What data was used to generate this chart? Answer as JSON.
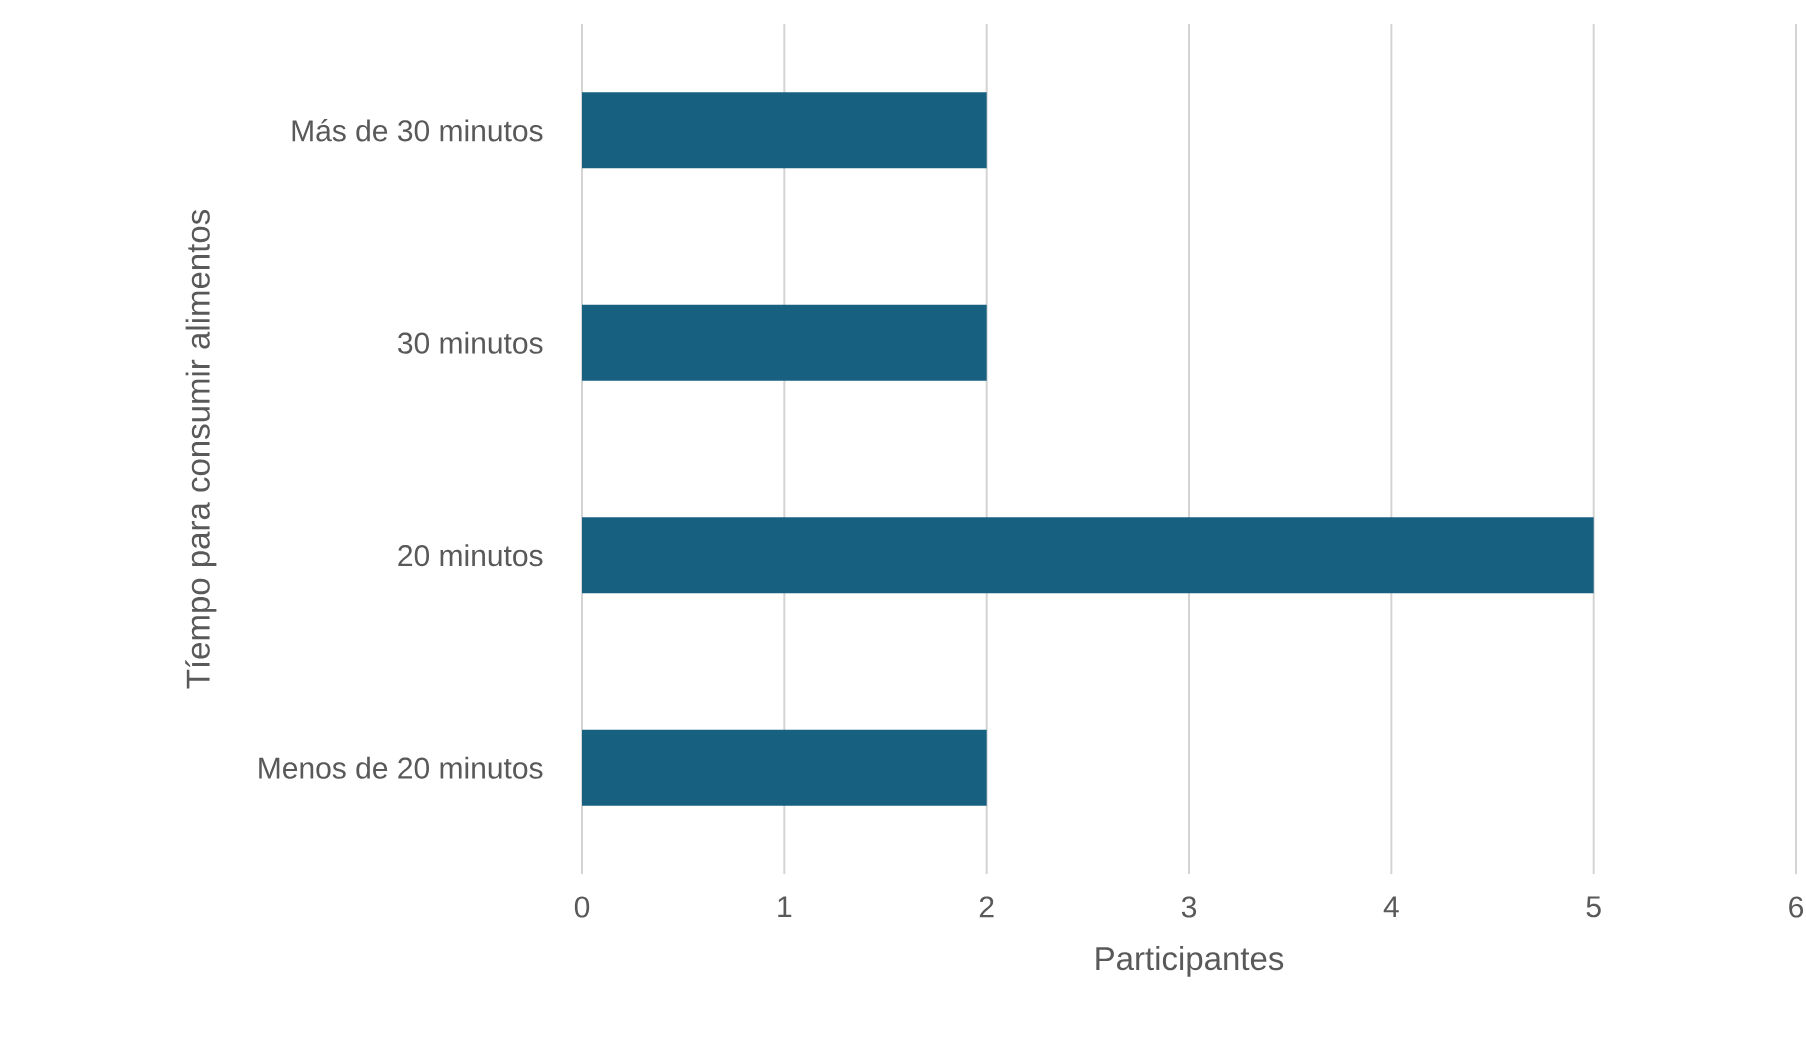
{
  "chart_data": {
    "type": "bar",
    "orientation": "horizontal",
    "categories": [
      "Más de 30 minutos",
      "30 minutos",
      "20 minutos",
      "Menos de 20 minutos"
    ],
    "values": [
      2,
      2,
      5,
      2
    ],
    "color": "#17607f",
    "xlim": [
      0,
      6
    ],
    "xticks": [
      0,
      1,
      2,
      3,
      4,
      5,
      6
    ],
    "xlabel": "Participantes",
    "ylabel": "Tíempo para consumir alimentos",
    "grid": "x"
  }
}
